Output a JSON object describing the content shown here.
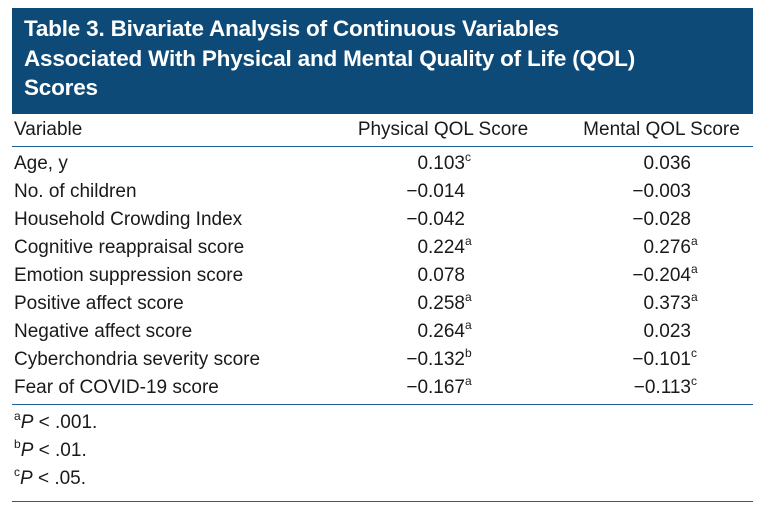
{
  "title": {
    "lines": [
      "Table 3. Bivariate Analysis of Continuous Variables",
      "Associated With Physical and Mental Quality of Life (QOL)",
      "Scores"
    ]
  },
  "header": {
    "variable": "Variable",
    "physical": "Physical QOL Score",
    "mental": "Mental QOL Score"
  },
  "rows": [
    {
      "variable": "Age, y",
      "physical": "0.103",
      "physical_sup": "c",
      "mental": "0.036",
      "mental_sup": ""
    },
    {
      "variable": "No. of children",
      "physical": "−0.014",
      "physical_sup": "",
      "mental": "−0.003",
      "mental_sup": ""
    },
    {
      "variable": "Household Crowding Index",
      "physical": "−0.042",
      "physical_sup": "",
      "mental": "−0.028",
      "mental_sup": ""
    },
    {
      "variable": "Cognitive reappraisal score",
      "physical": "0.224",
      "physical_sup": "a",
      "mental": "0.276",
      "mental_sup": "a"
    },
    {
      "variable": "Emotion suppression score",
      "physical": "0.078",
      "physical_sup": "",
      "mental": "−0.204",
      "mental_sup": "a"
    },
    {
      "variable": "Positive affect score",
      "physical": "0.258",
      "physical_sup": "a",
      "mental": "0.373",
      "mental_sup": "a"
    },
    {
      "variable": "Negative affect score",
      "physical": "0.264",
      "physical_sup": "a",
      "mental": "0.023",
      "mental_sup": ""
    },
    {
      "variable": "Cyberchondria severity score",
      "physical": "−0.132",
      "physical_sup": "b",
      "mental": "−0.101",
      "mental_sup": "c"
    },
    {
      "variable": "Fear of COVID-19 score",
      "physical": "−0.167",
      "physical_sup": "a",
      "mental": "−0.113",
      "mental_sup": "c"
    }
  ],
  "footnotes": [
    {
      "mark": "a",
      "p": "P",
      "text": " < .001."
    },
    {
      "mark": "b",
      "p": "P",
      "text": " < .01."
    },
    {
      "mark": "c",
      "p": "P",
      "text": " < .05."
    }
  ],
  "colors": {
    "title_background": "#0d4a78",
    "rule": "#1f5f93"
  }
}
